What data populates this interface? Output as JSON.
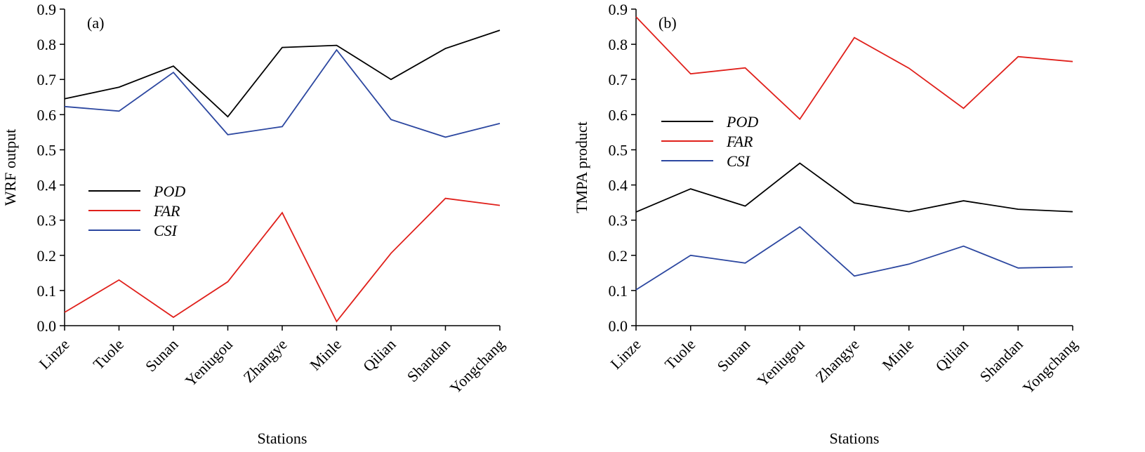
{
  "chart_data": [
    {
      "type": "line",
      "panel_label": "(a)",
      "xlabel": "Stations",
      "ylabel": "WRF output",
      "ylim": [
        0.0,
        0.9
      ],
      "yticks": [
        "0.0",
        "0.1",
        "0.2",
        "0.3",
        "0.4",
        "0.5",
        "0.6",
        "0.7",
        "0.8",
        "0.9"
      ],
      "categories": [
        "Linze",
        "Tuole",
        "Sunan",
        "Yeniugou",
        "Zhangye",
        "Minle",
        "Qilian",
        "Shandan",
        "Yongchang"
      ],
      "legend_position": "middle-left",
      "series": [
        {
          "name": "POD",
          "color": "#000000",
          "values": [
            0.645,
            0.678,
            0.738,
            0.594,
            0.791,
            0.797,
            0.7,
            0.788,
            0.84
          ]
        },
        {
          "name": "FAR",
          "color": "#e0201b",
          "values": [
            0.038,
            0.13,
            0.024,
            0.125,
            0.321,
            0.012,
            0.206,
            0.362,
            0.342
          ]
        },
        {
          "name": "CSI",
          "color": "#2c47a0",
          "values": [
            0.623,
            0.61,
            0.72,
            0.543,
            0.566,
            0.784,
            0.586,
            0.536,
            0.575
          ]
        }
      ]
    },
    {
      "type": "line",
      "panel_label": "(b)",
      "xlabel": "Stations",
      "ylabel": "TMPA product",
      "ylim": [
        0.0,
        0.9
      ],
      "yticks": [
        "0.0",
        "0.1",
        "0.2",
        "0.3",
        "0.4",
        "0.5",
        "0.6",
        "0.7",
        "0.8",
        "0.9"
      ],
      "categories": [
        "Linze",
        "Tuole",
        "Sunan",
        "Yeniugou",
        "Zhangye",
        "Minle",
        "Qilian",
        "Shandan",
        "Yongchang"
      ],
      "legend_position": "middle-left",
      "series": [
        {
          "name": "POD",
          "color": "#000000",
          "values": [
            0.323,
            0.389,
            0.34,
            0.462,
            0.349,
            0.324,
            0.355,
            0.331,
            0.324
          ]
        },
        {
          "name": "FAR",
          "color": "#e0201b",
          "values": [
            0.878,
            0.716,
            0.733,
            0.587,
            0.819,
            0.732,
            0.618,
            0.765,
            0.751
          ]
        },
        {
          "name": "CSI",
          "color": "#2c47a0",
          "values": [
            0.102,
            0.2,
            0.178,
            0.281,
            0.141,
            0.175,
            0.226,
            0.164,
            0.167
          ]
        }
      ]
    }
  ]
}
